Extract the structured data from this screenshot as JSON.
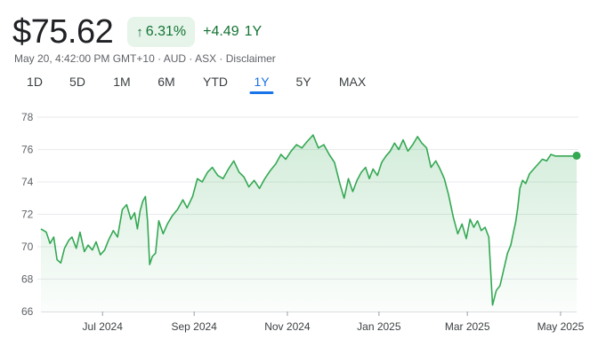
{
  "quote": {
    "price": "$75.62",
    "change_percent": "6.31%",
    "change_arrow": "↑",
    "change_abs": "+4.49",
    "period": "1Y",
    "meta": "May 20, 4:42:00 PM GMT+10 · AUD · ASX · Disclaimer"
  },
  "tabs": [
    {
      "label": "1D",
      "active": false
    },
    {
      "label": "5D",
      "active": false
    },
    {
      "label": "1M",
      "active": false
    },
    {
      "label": "6M",
      "active": false
    },
    {
      "label": "YTD",
      "active": false
    },
    {
      "label": "1Y",
      "active": true
    },
    {
      "label": "5Y",
      "active": false
    },
    {
      "label": "MAX",
      "active": false
    }
  ],
  "colors": {
    "line": "#34a853",
    "up_text": "#137333",
    "up_bg": "#e6f4ea",
    "active_tab": "#1a73e8",
    "grid": "#e8eaed"
  },
  "chart_data": {
    "type": "area",
    "title": "",
    "xlabel": "",
    "ylabel": "",
    "ylim": [
      66,
      78
    ],
    "yticks": [
      "78",
      "76",
      "74",
      "72",
      "70",
      "68",
      "66"
    ],
    "xticks": [
      {
        "label": "Jul 2024",
        "t": 0.115
      },
      {
        "label": "Sep 2024",
        "t": 0.286
      },
      {
        "label": "Nov 2024",
        "t": 0.46
      },
      {
        "label": "Jan 2025",
        "t": 0.631
      },
      {
        "label": "Mar 2025",
        "t": 0.796
      },
      {
        "label": "May 2025",
        "t": 0.97
      }
    ],
    "series": [
      {
        "name": "Price (AUD)",
        "t": [
          0,
          0.01,
          0.017,
          0.024,
          0.03,
          0.037,
          0.044,
          0.052,
          0.058,
          0.066,
          0.073,
          0.081,
          0.088,
          0.096,
          0.103,
          0.111,
          0.119,
          0.126,
          0.135,
          0.143,
          0.152,
          0.16,
          0.168,
          0.175,
          0.18,
          0.185,
          0.19,
          0.195,
          0.199,
          0.203,
          0.208,
          0.214,
          0.22,
          0.228,
          0.236,
          0.245,
          0.255,
          0.265,
          0.273,
          0.283,
          0.292,
          0.301,
          0.311,
          0.32,
          0.33,
          0.34,
          0.35,
          0.36,
          0.37,
          0.379,
          0.388,
          0.398,
          0.408,
          0.418,
          0.428,
          0.438,
          0.448,
          0.457,
          0.467,
          0.477,
          0.487,
          0.497,
          0.508,
          0.518,
          0.528,
          0.538,
          0.548,
          0.558,
          0.566,
          0.574,
          0.582,
          0.59,
          0.598,
          0.606,
          0.613,
          0.62,
          0.628,
          0.636,
          0.644,
          0.652,
          0.66,
          0.668,
          0.676,
          0.685,
          0.694,
          0.703,
          0.711,
          0.72,
          0.728,
          0.737,
          0.745,
          0.753,
          0.761,
          0.77,
          0.778,
          0.786,
          0.794,
          0.801,
          0.808,
          0.815,
          0.822,
          0.829,
          0.836,
          0.843,
          0.85,
          0.857,
          0.864,
          0.871,
          0.877,
          0.882,
          0.886,
          0.89,
          0.894,
          0.899,
          0.905,
          0.912,
          0.92,
          0.928,
          0.936,
          0.944,
          0.952,
          0.96,
          0.968,
          0.976,
          0.984,
          0.992,
          1.0
        ],
        "values": [
          71.1,
          70.9,
          70.2,
          70.6,
          69.2,
          69.0,
          69.9,
          70.4,
          70.6,
          69.9,
          70.9,
          69.7,
          70.1,
          69.8,
          70.3,
          69.5,
          69.8,
          70.4,
          71.0,
          70.6,
          72.3,
          72.6,
          71.7,
          72.1,
          71.1,
          72.2,
          72.8,
          73.1,
          71.6,
          68.9,
          69.4,
          69.6,
          71.6,
          70.8,
          71.4,
          71.9,
          72.3,
          72.9,
          72.4,
          73.1,
          74.2,
          74.0,
          74.6,
          74.9,
          74.4,
          74.2,
          74.8,
          75.3,
          74.6,
          74.3,
          73.7,
          74.1,
          73.6,
          74.2,
          74.7,
          75.1,
          75.7,
          75.4,
          75.9,
          76.3,
          76.1,
          76.5,
          76.9,
          76.1,
          76.3,
          75.7,
          75.2,
          73.9,
          73.0,
          74.2,
          73.4,
          74.1,
          74.6,
          74.9,
          74.2,
          74.8,
          74.4,
          75.2,
          75.6,
          75.9,
          76.4,
          76.0,
          76.6,
          75.9,
          76.3,
          76.8,
          76.4,
          76.1,
          74.9,
          75.3,
          74.8,
          74.2,
          73.2,
          71.8,
          70.8,
          71.4,
          70.5,
          71.7,
          71.2,
          71.6,
          71.0,
          71.2,
          70.6,
          66.4,
          67.3,
          67.6,
          68.6,
          69.6,
          70.1,
          70.9,
          71.5,
          72.4,
          73.6,
          74.1,
          73.9,
          74.5,
          74.8,
          75.1,
          75.4,
          75.3,
          75.7,
          75.6,
          75.6,
          75.6,
          75.6,
          75.6,
          75.62
        ]
      }
    ]
  }
}
